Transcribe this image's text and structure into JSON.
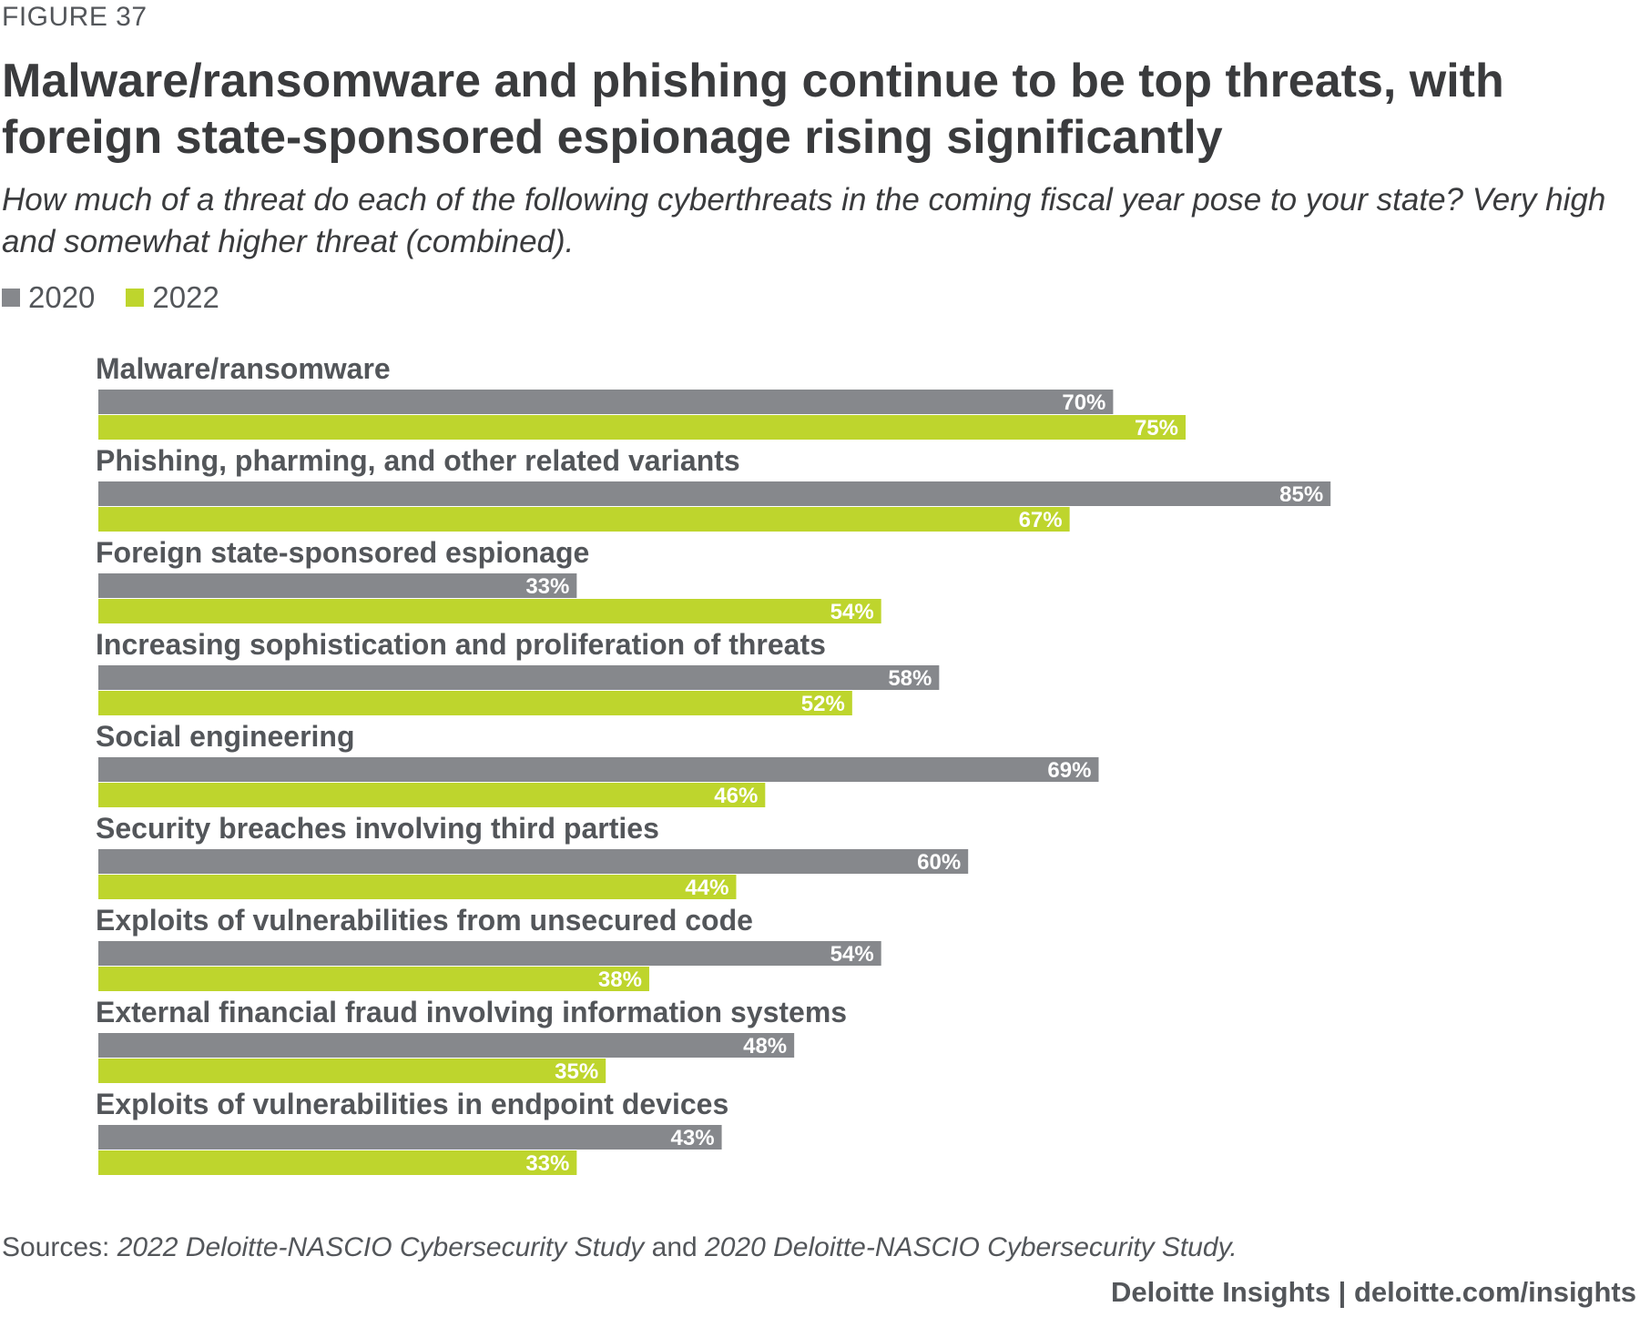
{
  "figure_label": "FIGURE 37",
  "title": "Malware/ransomware and phishing continue to be top threats, with foreign state-sponsored espionage rising significantly",
  "subtitle": "How much of a threat do each of the following cyberthreats in the coming fiscal year pose to your state? Very high and somewhat higher threat (combined).",
  "legend": [
    {
      "label": "2020",
      "color": "#86888c"
    },
    {
      "label": "2022",
      "color": "#bed52d"
    }
  ],
  "colors": {
    "series_2020": "#86888c",
    "series_2022": "#bed52d",
    "category_text": "#53565a",
    "value_text": "#ffffff"
  },
  "chart_data": {
    "type": "bar",
    "orientation": "horizontal",
    "title": "Malware/ransomware and phishing continue to be top threats, with foreign state-sponsored espionage rising significantly",
    "xlabel": "",
    "ylabel": "",
    "xlim": [
      0,
      100
    ],
    "value_suffix": "%",
    "categories": [
      "Malware/ransomware",
      "Phishing, pharming, and other related variants",
      "Foreign state-sponsored espionage",
      "Increasing sophistication and proliferation of threats",
      "Social engineering",
      "Security breaches involving third parties",
      "Exploits of vulnerabilities from unsecured code",
      "External financial fraud involving information systems",
      "Exploits of vulnerabilities in endpoint devices"
    ],
    "series": [
      {
        "name": "2020",
        "values": [
          70,
          85,
          33,
          58,
          69,
          60,
          54,
          48,
          43
        ]
      },
      {
        "name": "2022",
        "values": [
          75,
          67,
          54,
          52,
          46,
          44,
          38,
          35,
          33
        ]
      }
    ]
  },
  "stray_label": "60%",
  "sources": {
    "prefix": "Sources: ",
    "study_2022": "2022 Deloitte-NASCIO Cybersecurity Study",
    "joiner": " and ",
    "study_2020": "2020 Deloitte-NASCIO Cybersecurity Study."
  },
  "credit": "Deloitte Insights | deloitte.com/insights"
}
